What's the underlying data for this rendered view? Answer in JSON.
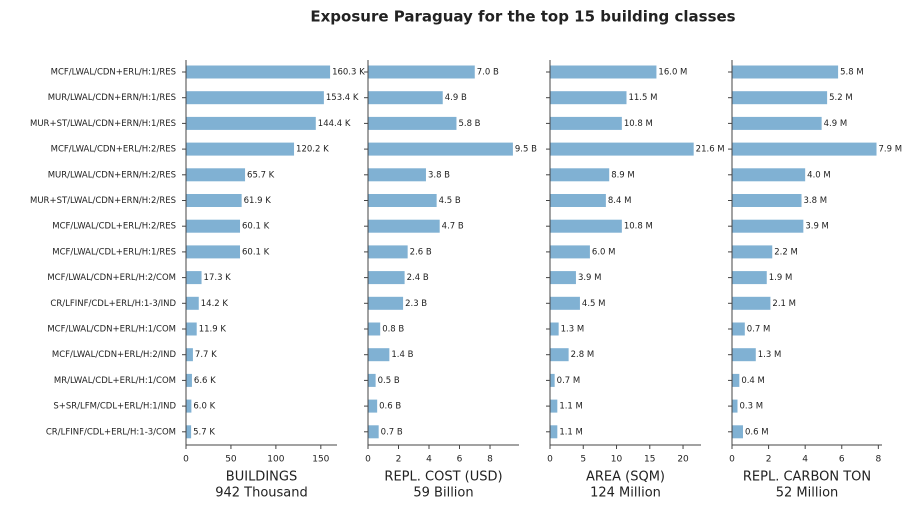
{
  "title": "Exposure Paraguay for the top 15 building classes",
  "categories": [
    "MCF/LWAL/CDN+ERL/H:1/RES",
    "MUR/LWAL/CDN+ERN/H:1/RES",
    "MUR+ST/LWAL/CDN+ERN/H:1/RES",
    "MCF/LWAL/CDN+ERL/H:2/RES",
    "MUR/LWAL/CDN+ERN/H:2/RES",
    "MUR+ST/LWAL/CDN+ERN/H:2/RES",
    "MCF/LWAL/CDL+ERL/H:2/RES",
    "MCF/LWAL/CDL+ERL/H:1/RES",
    "MCF/LWAL/CDN+ERL/H:2/COM",
    "CR/LFINF/CDL+ERL/H:1-3/IND",
    "MCF/LWAL/CDN+ERL/H:1/COM",
    "MCF/LWAL/CDN+ERL/H:2/IND",
    "MR/LWAL/CDL+ERL/H:1/COM",
    "S+SR/LFM/CDL+ERL/H:1/IND",
    "CR/LFINF/CDL+ERL/H:1-3/COM"
  ],
  "chart_data": [
    {
      "type": "barh",
      "xlabel": "BUILDINGS",
      "total": "942 Thousand",
      "color": "#80b1d3",
      "values": [
        160.3,
        153.4,
        144.4,
        120.2,
        65.7,
        61.9,
        60.1,
        60.1,
        17.3,
        14.2,
        11.9,
        7.7,
        6.6,
        6.0,
        5.7
      ],
      "value_labels": [
        "160.3 K",
        "153.4 K",
        "144.4 K",
        "120.2 K",
        "65.7 K",
        "61.9 K",
        "60.1 K",
        "60.1 K",
        "17.3 K",
        "14.2 K",
        "11.9 K",
        "7.7 K",
        "6.6 K",
        "6.0 K",
        "5.7 K"
      ],
      "xlim": [
        0,
        168
      ],
      "xticks": [
        0,
        50,
        100,
        150
      ]
    },
    {
      "type": "barh",
      "xlabel": "REPL. COST (USD)",
      "total": "59 Billion",
      "color": "#80b1d3",
      "values": [
        7.0,
        4.9,
        5.8,
        9.5,
        3.8,
        4.5,
        4.7,
        2.6,
        2.4,
        2.3,
        0.8,
        1.4,
        0.5,
        0.6,
        0.7
      ],
      "value_labels": [
        "7.0 B",
        "4.9 B",
        "5.8 B",
        "9.5 B",
        "3.8 B",
        "4.5 B",
        "4.7 B",
        "2.6 B",
        "2.4 B",
        "2.3 B",
        "0.8 B",
        "1.4 B",
        "0.5 B",
        "0.6 B",
        "0.7 B"
      ],
      "xlim": [
        0,
        9.9
      ],
      "xticks": [
        0,
        2,
        4,
        6,
        8
      ]
    },
    {
      "type": "barh",
      "xlabel": "AREA (SQM)",
      "total": "124 Million",
      "color": "#80b1d3",
      "values": [
        16.0,
        11.5,
        10.8,
        21.6,
        8.9,
        8.4,
        10.8,
        6.0,
        3.9,
        4.5,
        1.3,
        2.8,
        0.7,
        1.1,
        1.1
      ],
      "value_labels": [
        "16.0 M",
        "11.5 M",
        "10.8 M",
        "21.6 M",
        "8.9 M",
        "8.4 M",
        "10.8 M",
        "6.0 M",
        "3.9 M",
        "4.5 M",
        "1.3 M",
        "2.8 M",
        "0.7 M",
        "1.1 M",
        "1.1 M"
      ],
      "xlim": [
        0,
        22.7
      ],
      "xticks": [
        0,
        5,
        10,
        15,
        20
      ]
    },
    {
      "type": "barh",
      "xlabel": "REPL. CARBON TON",
      "total": "52 Million",
      "color": "#80b1d3",
      "values": [
        5.8,
        5.2,
        4.9,
        7.9,
        4.0,
        3.8,
        3.9,
        2.2,
        1.9,
        2.1,
        0.7,
        1.3,
        0.4,
        0.3,
        0.6
      ],
      "value_labels": [
        "5.8 M",
        "5.2 M",
        "4.9 M",
        "7.9 M",
        "4.0 M",
        "3.8 M",
        "3.9 M",
        "2.2 M",
        "1.9 M",
        "2.1 M",
        "0.7 M",
        "1.3 M",
        "0.4 M",
        "0.3 M",
        "0.6 M"
      ],
      "xlim": [
        0,
        8.2
      ],
      "xticks": [
        0,
        2,
        4,
        6,
        8
      ]
    }
  ]
}
